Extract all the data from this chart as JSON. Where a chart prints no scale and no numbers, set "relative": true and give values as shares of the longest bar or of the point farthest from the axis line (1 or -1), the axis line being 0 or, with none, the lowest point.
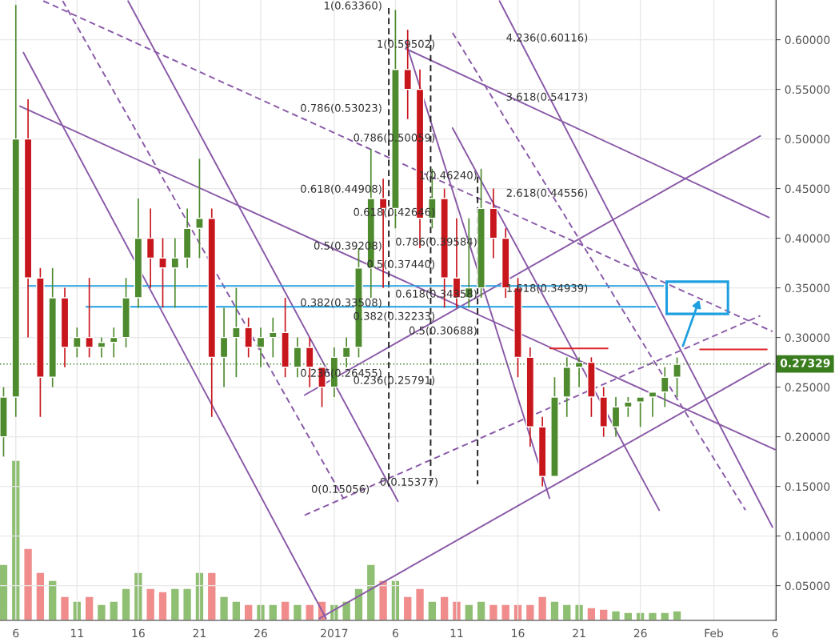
{
  "chart_data": [
    {
      "type": "candlestick",
      "xlim": [
        "2016-12-04T17:00",
        "2017-02-06T02:00"
      ],
      "ylim": [
        0.015,
        0.64
      ],
      "xticks": [
        {
          "value": "2016-12-06",
          "label": "6"
        },
        {
          "value": "2016-12-11",
          "label": "11"
        },
        {
          "value": "2016-12-16",
          "label": "16"
        },
        {
          "value": "2016-12-21",
          "label": "21"
        },
        {
          "value": "2016-12-26",
          "label": "26"
        },
        {
          "value": "2017-01-01",
          "label": "2017"
        },
        {
          "value": "2017-01-06",
          "label": "6"
        },
        {
          "value": "2017-01-11",
          "label": "11"
        },
        {
          "value": "2017-01-16",
          "label": "16"
        },
        {
          "value": "2017-01-21",
          "label": "21"
        },
        {
          "value": "2017-01-26",
          "label": "26"
        },
        {
          "value": "2017-02-01",
          "label": "Feb"
        },
        {
          "value": "2017-02-06",
          "label": "6"
        }
      ],
      "yticks": [
        {
          "value": 0.05,
          "label": "0.05000"
        },
        {
          "value": 0.1,
          "label": "0.10000"
        },
        {
          "value": 0.15,
          "label": "0.15000"
        },
        {
          "value": 0.2,
          "label": "0.20000"
        },
        {
          "value": 0.25,
          "label": "0.25000"
        },
        {
          "value": 0.3,
          "label": "0.30000"
        },
        {
          "value": 0.35,
          "label": "0.35000"
        },
        {
          "value": 0.4,
          "label": "0.40000"
        },
        {
          "value": 0.45,
          "label": "0.45000"
        },
        {
          "value": 0.5,
          "label": "0.50000"
        },
        {
          "value": 0.55,
          "label": "0.55000"
        },
        {
          "value": 0.6,
          "label": "0.60000"
        }
      ],
      "grid": true,
      "x": [
        "2016-12-05",
        "2016-12-06",
        "2016-12-07",
        "2016-12-08",
        "2016-12-09",
        "2016-12-10",
        "2016-12-11",
        "2016-12-12",
        "2016-12-13",
        "2016-12-14",
        "2016-12-15",
        "2016-12-16",
        "2016-12-17",
        "2016-12-18",
        "2016-12-19",
        "2016-12-20",
        "2016-12-21",
        "2016-12-22",
        "2016-12-23",
        "2016-12-24",
        "2016-12-25",
        "2016-12-26",
        "2016-12-27",
        "2016-12-28",
        "2016-12-29",
        "2016-12-30",
        "2016-12-31",
        "2017-01-01",
        "2017-01-02",
        "2017-01-03",
        "2017-01-04",
        "2017-01-05",
        "2017-01-06",
        "2017-01-07",
        "2017-01-08",
        "2017-01-09",
        "2017-01-10",
        "2017-01-11",
        "2017-01-12",
        "2017-01-13",
        "2017-01-14",
        "2017-01-15",
        "2017-01-16",
        "2017-01-17",
        "2017-01-18",
        "2017-01-19",
        "2017-01-20",
        "2017-01-21",
        "2017-01-22",
        "2017-01-23",
        "2017-01-24",
        "2017-01-25",
        "2017-01-26",
        "2017-01-27",
        "2017-01-28",
        "2017-01-29"
      ],
      "ohlc": [
        [
          0.2,
          0.25,
          0.18,
          0.24
        ],
        [
          0.24,
          0.635,
          0.22,
          0.5
        ],
        [
          0.5,
          0.54,
          0.3,
          0.36
        ],
        [
          0.36,
          0.37,
          0.22,
          0.26
        ],
        [
          0.26,
          0.37,
          0.25,
          0.34
        ],
        [
          0.34,
          0.35,
          0.27,
          0.29
        ],
        [
          0.29,
          0.31,
          0.28,
          0.3
        ],
        [
          0.3,
          0.36,
          0.28,
          0.29
        ],
        [
          0.29,
          0.3,
          0.28,
          0.295
        ],
        [
          0.295,
          0.31,
          0.28,
          0.3
        ],
        [
          0.3,
          0.36,
          0.29,
          0.34
        ],
        [
          0.34,
          0.44,
          0.33,
          0.4
        ],
        [
          0.4,
          0.43,
          0.35,
          0.38
        ],
        [
          0.38,
          0.4,
          0.33,
          0.37
        ],
        [
          0.37,
          0.4,
          0.33,
          0.38
        ],
        [
          0.38,
          0.43,
          0.37,
          0.41
        ],
        [
          0.41,
          0.48,
          0.38,
          0.42
        ],
        [
          0.42,
          0.43,
          0.22,
          0.28
        ],
        [
          0.28,
          0.33,
          0.25,
          0.3
        ],
        [
          0.3,
          0.35,
          0.26,
          0.31
        ],
        [
          0.31,
          0.32,
          0.28,
          0.29
        ],
        [
          0.29,
          0.31,
          0.27,
          0.3
        ],
        [
          0.3,
          0.32,
          0.28,
          0.305
        ],
        [
          0.305,
          0.34,
          0.26,
          0.27
        ],
        [
          0.27,
          0.3,
          0.26,
          0.29
        ],
        [
          0.29,
          0.3,
          0.25,
          0.27
        ],
        [
          0.27,
          0.27,
          0.23,
          0.25
        ],
        [
          0.25,
          0.29,
          0.24,
          0.28
        ],
        [
          0.28,
          0.3,
          0.27,
          0.29
        ],
        [
          0.29,
          0.39,
          0.28,
          0.37
        ],
        [
          0.37,
          0.49,
          0.34,
          0.44
        ],
        [
          0.44,
          0.46,
          0.35,
          0.43
        ],
        [
          0.43,
          0.63,
          0.41,
          0.57
        ],
        [
          0.57,
          0.61,
          0.52,
          0.55
        ],
        [
          0.55,
          0.57,
          0.39,
          0.42
        ],
        [
          0.42,
          0.47,
          0.41,
          0.44
        ],
        [
          0.44,
          0.45,
          0.33,
          0.36
        ],
        [
          0.36,
          0.42,
          0.33,
          0.34
        ],
        [
          0.34,
          0.42,
          0.33,
          0.35
        ],
        [
          0.35,
          0.47,
          0.34,
          0.43
        ],
        [
          0.43,
          0.45,
          0.38,
          0.4
        ],
        [
          0.4,
          0.41,
          0.34,
          0.35
        ],
        [
          0.35,
          0.36,
          0.26,
          0.28
        ],
        [
          0.28,
          0.29,
          0.19,
          0.21
        ],
        [
          0.21,
          0.22,
          0.15,
          0.16
        ],
        [
          0.16,
          0.26,
          0.16,
          0.24
        ],
        [
          0.24,
          0.28,
          0.22,
          0.27
        ],
        [
          0.27,
          0.28,
          0.25,
          0.275
        ],
        [
          0.275,
          0.28,
          0.22,
          0.24
        ],
        [
          0.24,
          0.25,
          0.2,
          0.21
        ],
        [
          0.21,
          0.24,
          0.2,
          0.23
        ],
        [
          0.23,
          0.24,
          0.22,
          0.235
        ],
        [
          0.235,
          0.24,
          0.21,
          0.24
        ],
        [
          0.24,
          0.245,
          0.22,
          0.245
        ],
        [
          0.245,
          0.27,
          0.23,
          0.26
        ],
        [
          0.26,
          0.28,
          0.24,
          0.273
        ]
      ],
      "colors": [
        "#4e8a2e",
        "#4e8a2e",
        "#c8161d",
        "#c8161d",
        "#4e8a2e",
        "#c8161d",
        "#4e8a2e",
        "#c8161d",
        "#4e8a2e",
        "#4e8a2e",
        "#4e8a2e",
        "#4e8a2e",
        "#c8161d",
        "#c8161d",
        "#4e8a2e",
        "#4e8a2e",
        "#4e8a2e",
        "#c8161d",
        "#4e8a2e",
        "#4e8a2e",
        "#c8161d",
        "#4e8a2e",
        "#4e8a2e",
        "#c8161d",
        "#4e8a2e",
        "#c8161d",
        "#c8161d",
        "#4e8a2e",
        "#4e8a2e",
        "#4e8a2e",
        "#4e8a2e",
        "#c8161d",
        "#4e8a2e",
        "#c8161d",
        "#c8161d",
        "#4e8a2e",
        "#c8161d",
        "#c8161d",
        "#4e8a2e",
        "#4e8a2e",
        "#c8161d",
        "#c8161d",
        "#c8161d",
        "#c8161d",
        "#c8161d",
        "#4e8a2e",
        "#4e8a2e",
        "#4e8a2e",
        "#c8161d",
        "#c8161d",
        "#4e8a2e",
        "#4e8a2e",
        "#4e8a2e",
        "#4e8a2e",
        "#4e8a2e",
        "#4e8a2e"
      ],
      "series": [
        {
          "type": "line",
          "color": "#8a5aa8",
          "line_style": "solid",
          "x": [
            "2016-12-06T15:00",
            "2016-12-31T08:00"
          ],
          "values": [
            0.587,
            0.017
          ]
        },
        {
          "type": "line",
          "color": "#8a5aa8",
          "line_style": "solid",
          "x": [
            "2016-12-15T04:00",
            "2017-01-06T05:00"
          ],
          "values": [
            0.639,
            0.135
          ]
        },
        {
          "type": "line",
          "color": "#8a5aa8",
          "line_style": "solid",
          "x": [
            "2016-12-06T08:00",
            "2017-02-06T00:00"
          ],
          "values": [
            0.533,
            0.187
          ]
        },
        {
          "type": "line",
          "color": "#8a5aa8",
          "line_style": "solid",
          "x": [
            "2016-12-29T14:00",
            "2017-02-04T19:00"
          ],
          "values": [
            0.242,
            0.503
          ]
        },
        {
          "type": "line",
          "color": "#8a5aa8",
          "line_style": "solid",
          "x": [
            "2016-12-30T19:00",
            "2017-02-05T12:00"
          ],
          "values": [
            0.017,
            0.274
          ]
        },
        {
          "type": "line",
          "color": "#8a5aa8",
          "line_style": "solid",
          "x": [
            "2017-01-06T20:00",
            "2017-02-05T12:00"
          ],
          "values": [
            0.591,
            0.421
          ]
        },
        {
          "type": "line",
          "color": "#8a5aa8",
          "line_style": "solid",
          "x": [
            "2017-01-06T20:00",
            "2017-01-18T14:00"
          ],
          "values": [
            0.598,
            0.138
          ]
        },
        {
          "type": "line",
          "color": "#8a5aa8",
          "line_style": "solid",
          "x": [
            "2017-01-10T16:00",
            "2017-01-27T13:00"
          ],
          "values": [
            0.511,
            0.126
          ]
        },
        {
          "type": "line",
          "color": "#8a5aa8",
          "line_style": "solid",
          "x": [
            "2017-01-14T12:00",
            "2017-02-05T19:00"
          ],
          "values": [
            0.639,
            0.109
          ]
        },
        {
          "type": "line",
          "color": "#8a5aa8",
          "line_style": "dashed",
          "x": [
            "2016-12-08T06:00",
            "2017-02-05T19:00"
          ],
          "values": [
            0.639,
            0.306
          ]
        },
        {
          "type": "line",
          "color": "#8a5aa8",
          "line_style": "dashed",
          "x": [
            "2016-12-29T14:00",
            "2017-02-04T19:00"
          ],
          "values": [
            0.121,
            0.322
          ]
        },
        {
          "type": "line",
          "color": "#8a5aa8",
          "line_style": "dashed",
          "x": [
            "2016-12-09T20:00",
            "2017-01-01T18:00"
          ],
          "values": [
            0.639,
            0.138
          ]
        },
        {
          "type": "line",
          "color": "#8a5aa8",
          "line_style": "dashed",
          "x": [
            "2017-01-10T16:00",
            "2017-02-03T14:00"
          ],
          "values": [
            0.607,
            0.126
          ]
        },
        {
          "type": "line",
          "color": "#222222",
          "line_style": "dashed",
          "x": [
            "2017-01-05T11:00",
            "2017-01-05T11:00"
          ],
          "values": [
            0.632,
            0.15
          ]
        },
        {
          "type": "line",
          "color": "#222222",
          "line_style": "dashed",
          "x": [
            "2017-01-08T21:00",
            "2017-01-08T21:00"
          ],
          "values": [
            0.605,
            0.154
          ]
        },
        {
          "type": "line",
          "color": "#222222",
          "line_style": "dashed",
          "x": [
            "2017-01-12T17:00",
            "2017-01-12T17:00"
          ],
          "values": [
            0.462,
            0.152
          ]
        },
        {
          "type": "line",
          "color": "#1e9fe0",
          "line_style": "solid",
          "x": [
            "2016-12-07T00:00",
            "2017-01-27T21:00"
          ],
          "values": [
            0.352,
            0.352
          ]
        },
        {
          "type": "line",
          "color": "#1e9fe0",
          "line_style": "solid",
          "x": [
            "2016-12-11T18:00",
            "2017-01-27T05:00"
          ],
          "values": [
            0.331,
            0.331
          ]
        },
        {
          "type": "line",
          "color": "#e0242b",
          "line_style": "solid",
          "x": [
            "2017-01-18T15:00",
            "2017-01-23T08:00"
          ],
          "values": [
            0.289,
            0.289
          ]
        },
        {
          "type": "line",
          "color": "#e0242b",
          "line_style": "solid",
          "x": [
            "2017-01-30T21:00",
            "2017-02-05T08:00"
          ],
          "values": [
            0.288,
            0.288
          ]
        }
      ],
      "ref_lines": [
        {
          "axis": "y",
          "value": 0.27329,
          "label": "0.27329",
          "color": "#3a7d1e",
          "line_style": "dotted"
        }
      ],
      "annotations": [
        "1(0.63360)",
        "0.786(0.53023)",
        "0.618(0.44908)",
        "0.5(0.39208)",
        "0.382(0.33508)",
        "0.236(0.26455)",
        "0(0.15056)",
        "1(0.59502)",
        "0.786(0.50059)",
        "0.618(0.42646)",
        "0.5(0.37440)",
        "0.382(0.32233)",
        "0.236(0.25791)",
        "0(0.15377)",
        "1(0.46240)",
        "0.786(0.39584)",
        "0.618(0.34358)",
        "0.5(0.30688)",
        "4.236(0.60116)",
        "3.618(0.54173)",
        "2.618(0.44556)",
        "1.618(0.34939)"
      ]
    },
    {
      "type": "bar",
      "relative": true,
      "xlim": [
        "2016-12-04T17:00",
        "2017-02-06T02:00"
      ],
      "x": [
        "2016-12-05",
        "2016-12-06",
        "2016-12-07",
        "2016-12-08",
        "2016-12-09",
        "2016-12-10",
        "2016-12-11",
        "2016-12-12",
        "2016-12-13",
        "2016-12-14",
        "2016-12-15",
        "2016-12-16",
        "2016-12-17",
        "2016-12-18",
        "2016-12-19",
        "2016-12-20",
        "2016-12-21",
        "2016-12-22",
        "2016-12-23",
        "2016-12-24",
        "2016-12-25",
        "2016-12-26",
        "2016-12-27",
        "2016-12-28",
        "2016-12-29",
        "2016-12-30",
        "2016-12-31",
        "2017-01-01",
        "2017-01-02",
        "2017-01-03",
        "2017-01-04",
        "2017-01-05",
        "2017-01-06",
        "2017-01-07",
        "2017-01-08",
        "2017-01-09",
        "2017-01-10",
        "2017-01-11",
        "2017-01-12",
        "2017-01-13",
        "2017-01-14",
        "2017-01-15",
        "2017-01-16",
        "2017-01-17",
        "2017-01-18",
        "2017-01-19",
        "2017-01-20",
        "2017-01-21",
        "2017-01-22",
        "2017-01-23",
        "2017-01-24",
        "2017-01-25",
        "2017-01-26",
        "2017-01-27",
        "2017-01-28",
        "2017-01-29"
      ],
      "values": [
        0.35,
        1,
        0.45,
        0.3,
        0.25,
        0.15,
        0.12,
        0.15,
        0.1,
        0.12,
        0.2,
        0.3,
        0.2,
        0.18,
        0.2,
        0.2,
        0.3,
        0.3,
        0.15,
        0.12,
        0.1,
        0.1,
        0.1,
        0.12,
        0.1,
        0.1,
        0.12,
        0.1,
        0.12,
        0.2,
        0.35,
        0.25,
        0.25,
        0.15,
        0.2,
        0.12,
        0.15,
        0.12,
        0.1,
        0.12,
        0.1,
        0.1,
        0.1,
        0.1,
        0.15,
        0.12,
        0.1,
        0.1,
        0.08,
        0.07,
        0.06,
        0.05,
        0.05,
        0.05,
        0.05,
        0.06
      ],
      "colors": [
        "#8fbf72",
        "#8fbf72",
        "#f08c8c",
        "#f08c8c",
        "#8fbf72",
        "#f08c8c",
        "#8fbf72",
        "#f08c8c",
        "#8fbf72",
        "#8fbf72",
        "#8fbf72",
        "#8fbf72",
        "#f08c8c",
        "#f08c8c",
        "#8fbf72",
        "#8fbf72",
        "#8fbf72",
        "#f08c8c",
        "#8fbf72",
        "#8fbf72",
        "#f08c8c",
        "#8fbf72",
        "#8fbf72",
        "#f08c8c",
        "#8fbf72",
        "#f08c8c",
        "#f08c8c",
        "#8fbf72",
        "#8fbf72",
        "#8fbf72",
        "#8fbf72",
        "#f08c8c",
        "#8fbf72",
        "#f08c8c",
        "#f08c8c",
        "#8fbf72",
        "#f08c8c",
        "#f08c8c",
        "#8fbf72",
        "#8fbf72",
        "#f08c8c",
        "#f08c8c",
        "#f08c8c",
        "#f08c8c",
        "#f08c8c",
        "#8fbf72",
        "#8fbf72",
        "#8fbf72",
        "#f08c8c",
        "#f08c8c",
        "#8fbf72",
        "#8fbf72",
        "#8fbf72",
        "#8fbf72",
        "#8fbf72",
        "#8fbf72"
      ]
    }
  ]
}
